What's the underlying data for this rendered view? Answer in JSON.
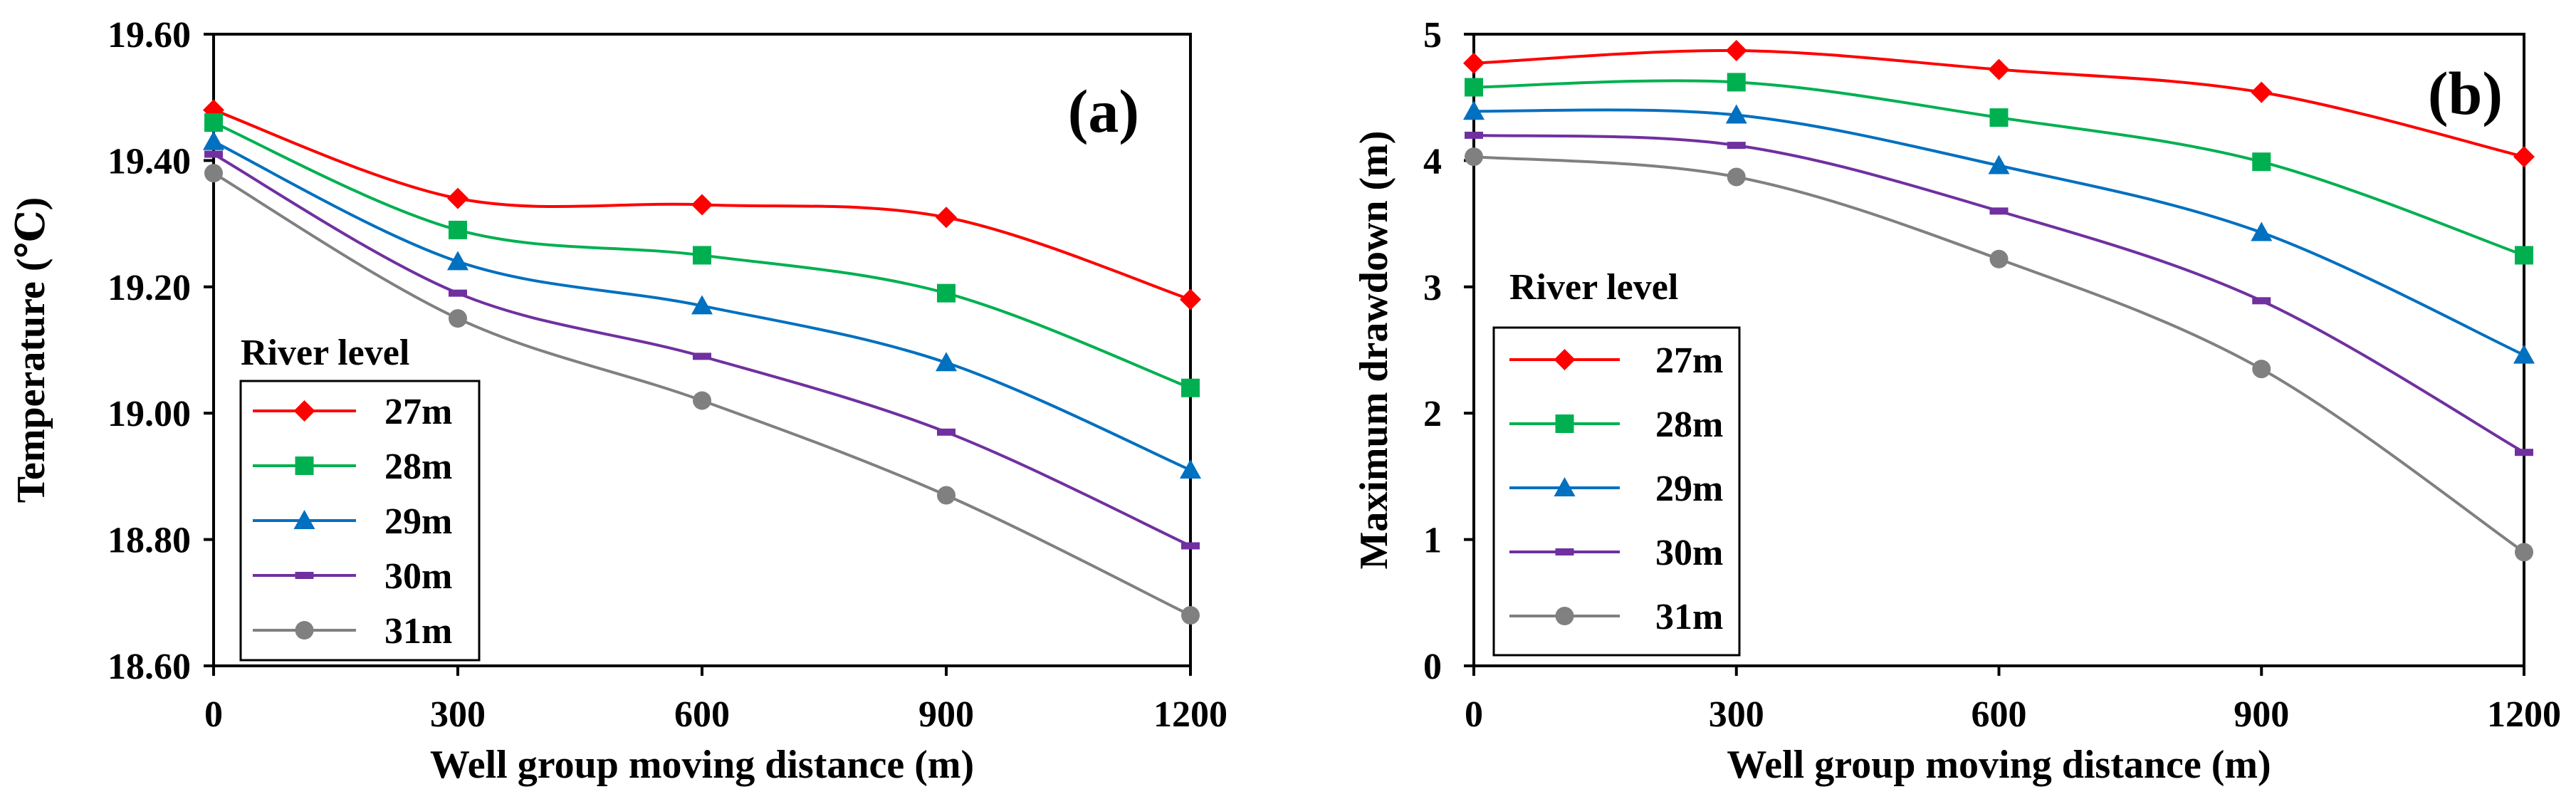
{
  "series_colors": {
    "27m": "#ff0000",
    "28m": "#00b050",
    "29m": "#0070c0",
    "30m": "#7030a0",
    "31m": "#808080"
  },
  "chart_data": [
    {
      "type": "line",
      "panel_label": "(a)",
      "title": "",
      "xlabel": "Well group moving distance (m)",
      "ylabel": "Temperature (℃)",
      "x": [
        0,
        300,
        600,
        900,
        1200
      ],
      "xticks": [
        "0",
        "300",
        "600",
        "900",
        "1200"
      ],
      "xlim": [
        0,
        1200
      ],
      "ylim": [
        18.6,
        19.6
      ],
      "yticks": [
        "18.60",
        "18.80",
        "19.00",
        "19.20",
        "19.40",
        "19.60"
      ],
      "legend_title": "River level",
      "series": [
        {
          "name": "27m",
          "marker": "diamond",
          "values": [
            19.48,
            19.34,
            19.33,
            19.31,
            19.18
          ]
        },
        {
          "name": "28m",
          "marker": "square",
          "values": [
            19.46,
            19.29,
            19.25,
            19.19,
            19.04
          ]
        },
        {
          "name": "29m",
          "marker": "triangle",
          "values": [
            19.43,
            19.24,
            19.17,
            19.08,
            18.91
          ]
        },
        {
          "name": "30m",
          "marker": "dash",
          "values": [
            19.41,
            19.19,
            19.09,
            18.97,
            18.79
          ]
        },
        {
          "name": "31m",
          "marker": "circle",
          "values": [
            19.38,
            19.15,
            19.02,
            18.87,
            18.68
          ]
        }
      ]
    },
    {
      "type": "line",
      "panel_label": "(b)",
      "title": "",
      "xlabel": "Well group moving distance (m)",
      "ylabel": "Maximum drawdown (m)",
      "x": [
        0,
        300,
        600,
        900,
        1200
      ],
      "xticks": [
        "0",
        "300",
        "600",
        "900",
        "1200"
      ],
      "xlim": [
        0,
        1200
      ],
      "ylim": [
        0,
        5
      ],
      "yticks": [
        "0",
        "1",
        "2",
        "3",
        "4",
        "5"
      ],
      "legend_title": "River level",
      "series": [
        {
          "name": "27m",
          "marker": "diamond",
          "values": [
            4.77,
            4.87,
            4.72,
            4.54,
            4.03
          ]
        },
        {
          "name": "28m",
          "marker": "square",
          "values": [
            4.58,
            4.62,
            4.34,
            3.99,
            3.25
          ]
        },
        {
          "name": "29m",
          "marker": "triangle",
          "values": [
            4.39,
            4.36,
            3.96,
            3.43,
            2.46
          ]
        },
        {
          "name": "30m",
          "marker": "dash",
          "values": [
            4.2,
            4.12,
            3.6,
            2.89,
            1.69
          ]
        },
        {
          "name": "31m",
          "marker": "circle",
          "values": [
            4.03,
            3.87,
            3.22,
            2.35,
            0.9
          ]
        }
      ]
    }
  ]
}
